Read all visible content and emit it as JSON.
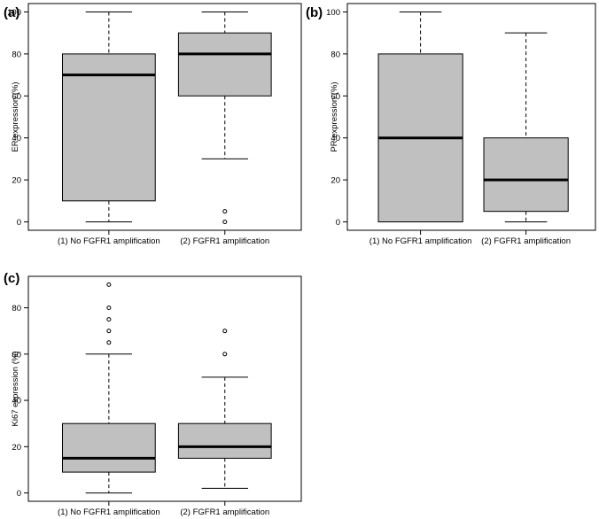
{
  "figure": {
    "colors": {
      "box_fill": "#c0c0c0",
      "stroke": "#000000",
      "background": "#ffffff"
    }
  },
  "chart_data": [
    {
      "panel_label": "(a)",
      "type": "box",
      "ylabel": "ER expression (%)",
      "categories": [
        "(1) No FGFR1 amplification",
        "(2) FGFR1 amplification"
      ],
      "yticks": [
        0,
        20,
        40,
        60,
        80,
        100
      ],
      "ylim": [
        -4,
        104
      ],
      "boxes": [
        {
          "whisker_low": 0,
          "q1": 10,
          "median": 70,
          "q3": 80,
          "whisker_high": 100,
          "outliers": []
        },
        {
          "whisker_low": 30,
          "q1": 60,
          "median": 80,
          "q3": 90,
          "whisker_high": 100,
          "outliers": [
            5,
            0
          ]
        }
      ]
    },
    {
      "panel_label": "(b)",
      "type": "box",
      "ylabel": "PR expression (%)",
      "categories": [
        "(1) No FGFR1 amplification",
        "(2) FGFR1 amplification"
      ],
      "yticks": [
        0,
        20,
        40,
        60,
        80,
        100
      ],
      "ylim": [
        -4,
        104
      ],
      "boxes": [
        {
          "whisker_low": 0,
          "q1": 0,
          "median": 40,
          "q3": 80,
          "whisker_high": 100,
          "outliers": []
        },
        {
          "whisker_low": 0,
          "q1": 5,
          "median": 20,
          "q3": 40,
          "whisker_high": 90,
          "outliers": []
        }
      ]
    },
    {
      "panel_label": "(c)",
      "type": "box",
      "ylabel": "Ki67 expression (%)",
      "categories": [
        "(1) No FGFR1 amplification",
        "(2) FGFR1 amplification"
      ],
      "yticks": [
        0,
        20,
        40,
        60,
        80
      ],
      "ylim": [
        -3.6,
        93.6
      ],
      "boxes": [
        {
          "whisker_low": 0,
          "q1": 9,
          "median": 15,
          "q3": 30,
          "whisker_high": 60,
          "outliers": [
            65,
            70,
            75,
            80,
            90
          ]
        },
        {
          "whisker_low": 2,
          "q1": 15,
          "median": 20,
          "q3": 30,
          "whisker_high": 50,
          "outliers": [
            60,
            70
          ]
        }
      ]
    }
  ]
}
